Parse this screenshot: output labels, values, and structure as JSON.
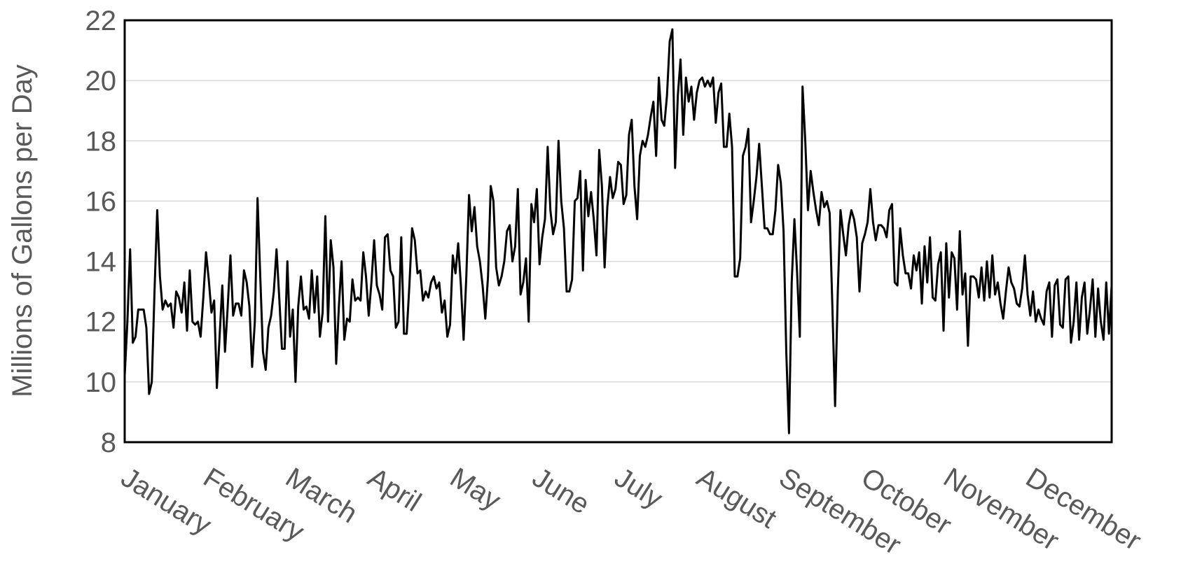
{
  "chart_data": {
    "type": "line",
    "y_label": "Millions of Gallons per Day",
    "x_labels": [
      "January",
      "February",
      "March",
      "April",
      "May",
      "June",
      "July",
      "August",
      "September",
      "October",
      "November",
      "December"
    ],
    "color": "#000000",
    "ylim": [
      8,
      22
    ],
    "yticks": [
      8,
      10,
      12,
      14,
      16,
      18,
      20,
      22
    ],
    "grid": true,
    "values": [
      10.2,
      12,
      14.4,
      11.3,
      11.5,
      12.4,
      12.4,
      12.4,
      11.8,
      9.6,
      10,
      13,
      15.7,
      13.5,
      12.4,
      12.7,
      12.5,
      12.6,
      11.8,
      13,
      12.8,
      12.3,
      13.3,
      11.7,
      13.7,
      12,
      11.9,
      12,
      11.5,
      12.8,
      14.3,
      13.4,
      12.3,
      12.7,
      9.8,
      11.5,
      13.2,
      11,
      12.5,
      14.2,
      12.2,
      12.6,
      12.6,
      12.2,
      13.7,
      13.3,
      12.5,
      10.5,
      12,
      16.1,
      13.5,
      11,
      10.4,
      11.8,
      12.2,
      13,
      14.4,
      12.8,
      11.1,
      11.1,
      14,
      11.5,
      12.4,
      10,
      12.5,
      13.5,
      12.4,
      12.5,
      12.1,
      13.7,
      12.3,
      13.5,
      11.5,
      12.3,
      15.5,
      12,
      14.7,
      13.8,
      10.6,
      12.5,
      14,
      11.4,
      12.1,
      12,
      13.4,
      12.7,
      12.8,
      12.7,
      14.3,
      13.5,
      12.2,
      13.3,
      14.7,
      13.2,
      12.9,
      12.4,
      14.8,
      14.9,
      13.7,
      13.5,
      11.8,
      12,
      14.8,
      11.6,
      11.6,
      13.2,
      15.1,
      14.7,
      13.6,
      13.7,
      12.7,
      13,
      12.8,
      13.3,
      13.5,
      13.1,
      13.3,
      12.3,
      12.7,
      11.5,
      11.9,
      14.2,
      13.6,
      14.6,
      13.2,
      11.4,
      13.5,
      16.2,
      15,
      15.8,
      14.5,
      14,
      13.2,
      12.1,
      13.5,
      16.5,
      16,
      13.8,
      13.2,
      13.5,
      14,
      15,
      15.2,
      14,
      14.5,
      16.4,
      12.9,
      13.3,
      14.1,
      12,
      15.9,
      15.3,
      16.4,
      13.9,
      14.8,
      15.4,
      17.8,
      15.7,
      14.9,
      15.3,
      18,
      16,
      15.1,
      13,
      13,
      13.4,
      16,
      16.1,
      17,
      13.7,
      16.7,
      15.5,
      16.3,
      15.4,
      14.2,
      17.7,
      16.5,
      13.8,
      15.8,
      16.8,
      16.1,
      16.4,
      17.3,
      17.2,
      15.9,
      16.2,
      18.2,
      18.7,
      16.5,
      15.4,
      17.5,
      18,
      17.8,
      18.2,
      18.8,
      19.3,
      17.5,
      20.1,
      18.7,
      18.5,
      19.5,
      21.3,
      21.7,
      17.1,
      19.5,
      20.7,
      18.2,
      20.1,
      19.3,
      19.8,
      18.7,
      19.6,
      20,
      20.1,
      19.8,
      20,
      19.8,
      20.1,
      18.6,
      19.6,
      19.9,
      17.8,
      17.8,
      18.9,
      17.8,
      13.5,
      13.5,
      14.1,
      17.5,
      17.8,
      18.4,
      15.3,
      16,
      16.8,
      17.9,
      16.5,
      15.1,
      15.1,
      14.9,
      14.9,
      15.7,
      17.2,
      16.6,
      15,
      11,
      8.3,
      13.3,
      15.4,
      13.6,
      11.5,
      19.8,
      18,
      15.7,
      17,
      16.3,
      15.7,
      15.2,
      16.3,
      15.8,
      16,
      15.6,
      12.5,
      9.2,
      13,
      15.7,
      14.9,
      14.2,
      15.2,
      15.7,
      15.4,
      14.8,
      13,
      14.6,
      14.9,
      15.3,
      16.4,
      15.3,
      14.7,
      15.2,
      15.2,
      15.1,
      14.8,
      15.7,
      15.9,
      13.3,
      13.2,
      15.1,
      14.2,
      13.6,
      13.6,
      13.1,
      14.2,
      13.7,
      14.3,
      12.6,
      14.5,
      13.3,
      14.8,
      12.8,
      12.7,
      13.9,
      14.3,
      11.7,
      14.6,
      12.8,
      14.3,
      14.1,
      12.4,
      15,
      12.9,
      13.6,
      11.2,
      13.5,
      13.5,
      13.4,
      12.8,
      13.8,
      12.7,
      14,
      12.8,
      14.2,
      12.9,
      13.3,
      12.6,
      12.1,
      13,
      13.8,
      13.3,
      13.1,
      12.6,
      12.5,
      13.1,
      14.2,
      12.9,
      12.2,
      13,
      12,
      12.4,
      12.1,
      11.9,
      13,
      13.3,
      11.5,
      13.2,
      13.4,
      11.9,
      11.8,
      13.4,
      13.5,
      11.3,
      12,
      13.3,
      11.4,
      12.8,
      13.3,
      11.6,
      12.4,
      13.4,
      11.5,
      13.1,
      12,
      11.4,
      13.3,
      11.6,
      13.2
    ]
  }
}
